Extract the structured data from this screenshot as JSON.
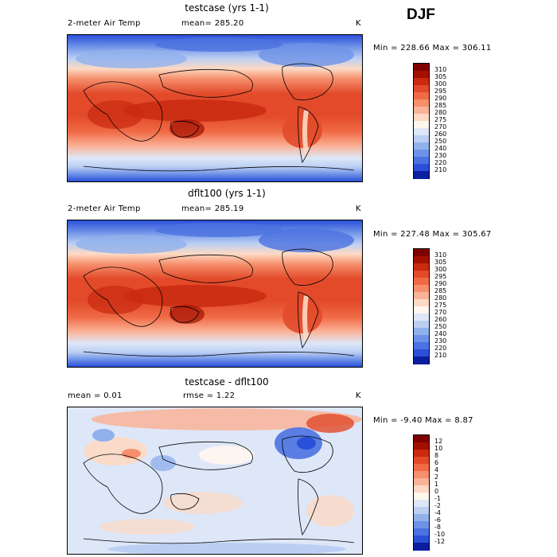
{
  "season": "DJF",
  "panels": [
    {
      "title": "testcase (yrs 1-1)",
      "left_label": "2-meter Air Temp",
      "stat_label": "mean=  285.20",
      "stat2_label": "",
      "units": "K",
      "minmax": "Min = 228.66 Max = 306.11",
      "levels": [
        "310",
        "305",
        "300",
        "295",
        "290",
        "285",
        "280",
        "275",
        "270",
        "260",
        "250",
        "240",
        "230",
        "220",
        "210"
      ],
      "colors": [
        "#7f0000",
        "#a31000",
        "#c92a10",
        "#e24a2a",
        "#f06a45",
        "#f68f6c",
        "#fab398",
        "#fdd9c3",
        "#fff6ee",
        "#dde7f8",
        "#bccff3",
        "#91b1ec",
        "#6e92e7",
        "#4b72e0",
        "#2a4fd8",
        "#0c1e9e"
      ]
    },
    {
      "title": "dflt100 (yrs 1-1)",
      "left_label": "2-meter Air Temp",
      "stat_label": "mean=  285.19",
      "stat2_label": "",
      "units": "K",
      "minmax": "Min = 227.48 Max = 305.67",
      "levels": [
        "310",
        "305",
        "300",
        "295",
        "290",
        "285",
        "280",
        "275",
        "270",
        "260",
        "250",
        "240",
        "230",
        "220",
        "210"
      ],
      "colors": [
        "#7f0000",
        "#a31000",
        "#c92a10",
        "#e24a2a",
        "#f06a45",
        "#f68f6c",
        "#fab398",
        "#fdd9c3",
        "#fff6ee",
        "#dde7f8",
        "#bccff3",
        "#91b1ec",
        "#6e92e7",
        "#4b72e0",
        "#2a4fd8",
        "#0c1e9e"
      ]
    },
    {
      "title": "testcase - dflt100",
      "left_label": "mean =    0.01",
      "stat_label": "rmse =    1.22",
      "stat2_label": "",
      "units": "K",
      "minmax": "Min =  -9.40 Max =   8.87",
      "levels": [
        "12",
        "10",
        "8",
        "6",
        "4",
        "2",
        "1",
        "0",
        "-1",
        "-2",
        "-4",
        "-6",
        "-8",
        "-10",
        "-12"
      ],
      "colors": [
        "#7f0000",
        "#a31000",
        "#c92a10",
        "#e24a2a",
        "#f06a45",
        "#f68f6c",
        "#fab398",
        "#fdd9c3",
        "#fff6ee",
        "#dde7f8",
        "#bccff3",
        "#91b1ec",
        "#6e92e7",
        "#4b72e0",
        "#2a4fd8",
        "#0c1e9e"
      ]
    }
  ],
  "chart_data": {
    "type": "heatmap",
    "season": "DJF",
    "variable": "2-meter Air Temp",
    "units": "K",
    "maps": [
      {
        "title": "testcase (yrs 1-1)",
        "mean": 285.2,
        "min": 228.66,
        "max": 306.11,
        "contour_levels": [
          210,
          220,
          230,
          240,
          250,
          260,
          270,
          275,
          280,
          285,
          290,
          295,
          300,
          305,
          310
        ]
      },
      {
        "title": "dflt100 (yrs 1-1)",
        "mean": 285.19,
        "min": 227.48,
        "max": 305.67,
        "contour_levels": [
          210,
          220,
          230,
          240,
          250,
          260,
          270,
          275,
          280,
          285,
          290,
          295,
          300,
          305,
          310
        ]
      },
      {
        "title": "testcase - dflt100",
        "mean": 0.01,
        "rmse": 1.22,
        "min": -9.4,
        "max": 8.87,
        "contour_levels": [
          -12,
          -10,
          -8,
          -6,
          -4,
          -2,
          -1,
          0,
          1,
          2,
          4,
          6,
          8,
          10,
          12
        ]
      }
    ]
  }
}
